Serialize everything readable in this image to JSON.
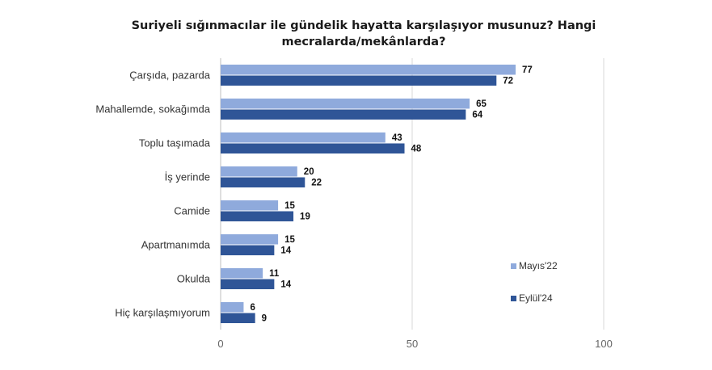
{
  "chart_data": {
    "type": "bar",
    "orientation": "horizontal",
    "title": "Suriyeli sığınmacılar ile gündelik hayatta karşılaşıyor musunuz? Hangi mecralarda/mekânlarda?",
    "categories": [
      "Çarşıda, pazarda",
      "Mahallemde, sokağımda",
      "Toplu taşımada",
      "İş yerinde",
      "Camide",
      "Apartmanımda",
      "Okulda",
      "Hiç karşılaşmıyorum"
    ],
    "series": [
      {
        "name": "Mayıs'22",
        "values": [
          77,
          65,
          43,
          20,
          15,
          15,
          11,
          6
        ],
        "color": "#8faadc"
      },
      {
        "name": "Eylül'24",
        "values": [
          72,
          64,
          48,
          22,
          19,
          14,
          14,
          9
        ],
        "color": "#2f5597"
      }
    ],
    "xlim": [
      0,
      100
    ],
    "xticks": [
      0,
      50,
      100
    ],
    "grid": true,
    "legend_position": "right"
  }
}
